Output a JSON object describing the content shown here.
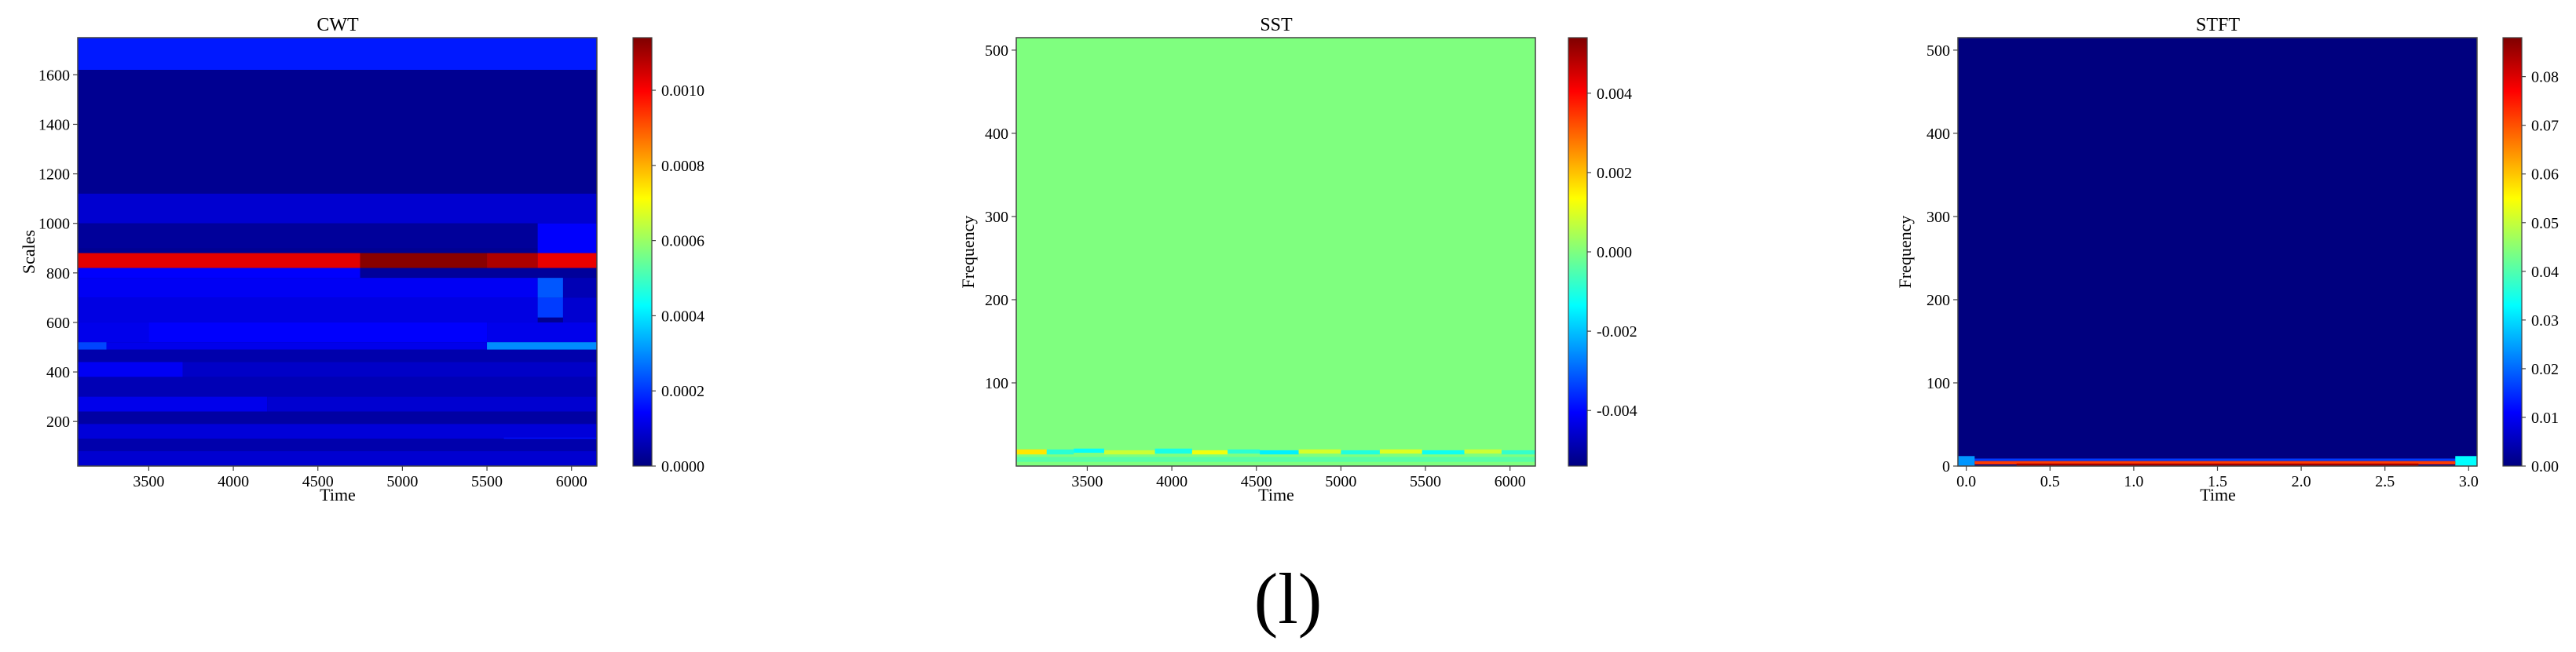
{
  "caption": "(l)",
  "colormap": [
    "#00007f",
    "#0000ff",
    "#007fff",
    "#00ffff",
    "#7fff7f",
    "#ffff00",
    "#ff7f00",
    "#ff0000",
    "#7f0000"
  ],
  "chart_data": [
    {
      "type": "heatmap",
      "title": "CWT",
      "xlabel": "Time",
      "ylabel": "Scales",
      "xlim": [
        3080,
        6150
      ],
      "ylim": [
        20,
        1750
      ],
      "x_ticks": [
        "3500",
        "4000",
        "4500",
        "5000",
        "5500",
        "6000"
      ],
      "x_tick_values": [
        3500,
        4000,
        4500,
        5000,
        5500,
        6000
      ],
      "y_ticks": [
        "200",
        "400",
        "600",
        "800",
        "1000",
        "1200",
        "1400",
        "1600"
      ],
      "y_tick_values": [
        200,
        400,
        600,
        800,
        1000,
        1200,
        1400,
        1600
      ],
      "colorbar": {
        "vmin": 0,
        "vmax": 0.00114,
        "ticks": [
          "0.0000",
          "0.0002",
          "0.0004",
          "0.0006",
          "0.0008",
          "0.0010"
        ],
        "tick_values": [
          0,
          0.0002,
          0.0004,
          0.0006,
          0.0008,
          0.001
        ]
      },
      "background_value": 2e-05,
      "cells": [
        {
          "x": [
            3080,
            6150
          ],
          "y": [
            1620,
            1750
          ],
          "v": 0.00017
        },
        {
          "x": [
            3080,
            6150
          ],
          "y": [
            1120,
            1620
          ],
          "v": 2e-05
        },
        {
          "x": [
            3080,
            6150
          ],
          "y": [
            1000,
            1120
          ],
          "v": 9e-05
        },
        {
          "x": [
            3080,
            6150
          ],
          "y": [
            900,
            1000
          ],
          "v": 3e-05
        },
        {
          "x": [
            5800,
            6150
          ],
          "y": [
            880,
            1000
          ],
          "v": 0.00014
        },
        {
          "x": [
            3080,
            4750
          ],
          "y": [
            820,
            880
          ],
          "v": 0.00103
        },
        {
          "x": [
            4750,
            5500
          ],
          "y": [
            820,
            880
          ],
          "v": 0.00113
        },
        {
          "x": [
            5500,
            5800
          ],
          "y": [
            820,
            880
          ],
          "v": 0.00109
        },
        {
          "x": [
            5800,
            6150
          ],
          "y": [
            820,
            880
          ],
          "v": 0.00102
        },
        {
          "x": [
            3080,
            4750
          ],
          "y": [
            780,
            820
          ],
          "v": 0.00014
        },
        {
          "x": [
            4750,
            6150
          ],
          "y": [
            780,
            820
          ],
          "v": 3e-05
        },
        {
          "x": [
            3080,
            5800
          ],
          "y": [
            700,
            780
          ],
          "v": 0.00013
        },
        {
          "x": [
            5800,
            5950
          ],
          "y": [
            700,
            780
          ],
          "v": 0.00024
        },
        {
          "x": [
            5950,
            6150
          ],
          "y": [
            700,
            780
          ],
          "v": 6e-05
        },
        {
          "x": [
            3080,
            5800
          ],
          "y": [
            600,
            700
          ],
          "v": 0.00011
        },
        {
          "x": [
            5800,
            5950
          ],
          "y": [
            620,
            700
          ],
          "v": 0.00021
        },
        {
          "x": [
            5950,
            6150
          ],
          "y": [
            600,
            700
          ],
          "v": 9e-05
        },
        {
          "x": [
            3080,
            3500
          ],
          "y": [
            520,
            600
          ],
          "v": 0.00012
        },
        {
          "x": [
            3500,
            5500
          ],
          "y": [
            520,
            600
          ],
          "v": 0.00014
        },
        {
          "x": [
            5500,
            6150
          ],
          "y": [
            520,
            600
          ],
          "v": 0.00012
        },
        {
          "x": [
            3080,
            3250
          ],
          "y": [
            490,
            520
          ],
          "v": 0.00022
        },
        {
          "x": [
            3250,
            5500
          ],
          "y": [
            490,
            520
          ],
          "v": 0.00012
        },
        {
          "x": [
            5500,
            6150
          ],
          "y": [
            490,
            520
          ],
          "v": 0.0003
        },
        {
          "x": [
            3080,
            6150
          ],
          "y": [
            440,
            490
          ],
          "v": 5e-05
        },
        {
          "x": [
            3080,
            3700
          ],
          "y": [
            380,
            440
          ],
          "v": 0.00013
        },
        {
          "x": [
            3700,
            6150
          ],
          "y": [
            380,
            440
          ],
          "v": 8e-05
        },
        {
          "x": [
            3080,
            6150
          ],
          "y": [
            300,
            380
          ],
          "v": 6e-05
        },
        {
          "x": [
            3080,
            4200
          ],
          "y": [
            240,
            300
          ],
          "v": 0.00012
        },
        {
          "x": [
            4200,
            6150
          ],
          "y": [
            240,
            300
          ],
          "v": 9e-05
        },
        {
          "x": [
            3080,
            6150
          ],
          "y": [
            190,
            240
          ],
          "v": 4e-05
        },
        {
          "x": [
            3080,
            6150
          ],
          "y": [
            130,
            190
          ],
          "v": 0.0001
        },
        {
          "x": [
            5600,
            6150
          ],
          "y": [
            115,
            135
          ],
          "v": 0.00016
        },
        {
          "x": [
            3080,
            6150
          ],
          "y": [
            80,
            130
          ],
          "v": 5e-05
        },
        {
          "x": [
            3080,
            6150
          ],
          "y": [
            20,
            80
          ],
          "v": 9e-05
        }
      ]
    },
    {
      "type": "heatmap",
      "title": "SST",
      "xlabel": "Time",
      "ylabel": "Frequency",
      "xlim": [
        3080,
        6150
      ],
      "ylim": [
        0,
        515
      ],
      "x_ticks": [
        "3500",
        "4000",
        "4500",
        "5000",
        "5500",
        "6000"
      ],
      "x_tick_values": [
        3500,
        4000,
        4500,
        5000,
        5500,
        6000
      ],
      "y_ticks": [
        "100",
        "200",
        "300",
        "400",
        "500"
      ],
      "y_tick_values": [
        100,
        200,
        300,
        400,
        500
      ],
      "colorbar": {
        "vmin": -0.0054,
        "vmax": 0.0054,
        "ticks": [
          "-0.004",
          "-0.002",
          "0.000",
          "0.002",
          "0.004"
        ],
        "tick_values": [
          -0.004,
          -0.002,
          0.0,
          0.002,
          0.004
        ]
      },
      "background_value": 0.0,
      "cells": [
        {
          "x": [
            3080,
            3260
          ],
          "y": [
            14,
            20
          ],
          "v": 0.0016
        },
        {
          "x": [
            3260,
            3420
          ],
          "y": [
            14,
            20
          ],
          "v": -0.0009
        },
        {
          "x": [
            3420,
            3600
          ],
          "y": [
            16,
            21
          ],
          "v": -0.0013
        },
        {
          "x": [
            3600,
            3900
          ],
          "y": [
            14,
            19
          ],
          "v": 0.0008
        },
        {
          "x": [
            3900,
            4120
          ],
          "y": [
            15,
            21
          ],
          "v": -0.0011
        },
        {
          "x": [
            4120,
            4330
          ],
          "y": [
            14,
            19
          ],
          "v": 0.0012
        },
        {
          "x": [
            4330,
            4520
          ],
          "y": [
            15,
            20
          ],
          "v": -0.0009
        },
        {
          "x": [
            4520,
            4750
          ],
          "y": [
            14,
            19
          ],
          "v": -0.0015
        },
        {
          "x": [
            4750,
            5000
          ],
          "y": [
            15,
            20
          ],
          "v": 0.0009
        },
        {
          "x": [
            5000,
            5230
          ],
          "y": [
            14,
            19
          ],
          "v": -0.001
        },
        {
          "x": [
            5230,
            5480
          ],
          "y": [
            15,
            20
          ],
          "v": 0.001
        },
        {
          "x": [
            5480,
            5730
          ],
          "y": [
            14,
            19
          ],
          "v": -0.0012
        },
        {
          "x": [
            5730,
            5950
          ],
          "y": [
            15,
            20
          ],
          "v": 0.0008
        },
        {
          "x": [
            5950,
            6150
          ],
          "y": [
            14,
            19
          ],
          "v": -0.0008
        },
        {
          "x": [
            3080,
            6150
          ],
          "y": [
            5,
            11
          ],
          "v": -0.0004
        }
      ]
    },
    {
      "type": "heatmap",
      "title": "STFT",
      "xlabel": "Time",
      "ylabel": "Frequency",
      "xlim": [
        -0.05,
        3.05
      ],
      "ylim": [
        0,
        515
      ],
      "x_ticks": [
        "0.0",
        "0.5",
        "1.0",
        "1.5",
        "2.0",
        "2.5",
        "3.0"
      ],
      "x_tick_values": [
        0,
        0.5,
        1.0,
        1.5,
        2.0,
        2.5,
        3.0
      ],
      "y_ticks": [
        "0",
        "100",
        "200",
        "300",
        "400",
        "500"
      ],
      "y_tick_values": [
        0,
        100,
        200,
        300,
        400,
        500
      ],
      "colorbar": {
        "vmin": 0,
        "vmax": 0.088,
        "ticks": [
          "0.00",
          "0.01",
          "0.02",
          "0.03",
          "0.04",
          "0.05",
          "0.06",
          "0.07",
          "0.08"
        ],
        "tick_values": [
          0,
          0.01,
          0.02,
          0.03,
          0.04,
          0.05,
          0.06,
          0.07,
          0.08
        ]
      },
      "background_value": 0.0,
      "cells": [
        {
          "x": [
            -0.05,
            3.05
          ],
          "y": [
            6,
            9
          ],
          "v": 0.016
        },
        {
          "x": [
            -0.05,
            0.05
          ],
          "y": [
            0,
            12
          ],
          "v": 0.024
        },
        {
          "x": [
            2.92,
            3.05
          ],
          "y": [
            0,
            12
          ],
          "v": 0.033
        },
        {
          "x": [
            0.05,
            2.92
          ],
          "y": [
            2,
            6
          ],
          "v": 0.072
        },
        {
          "x": [
            0.3,
            2.7
          ],
          "y": [
            0,
            3
          ],
          "v": 0.085
        }
      ]
    }
  ]
}
